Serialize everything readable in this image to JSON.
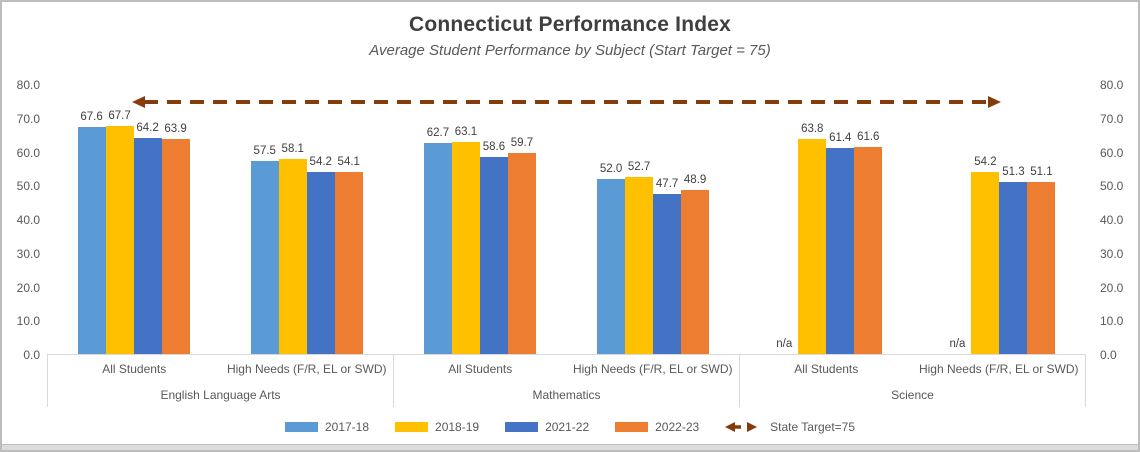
{
  "title": "Connecticut Performance Index",
  "subtitle": "Average Student Performance by Subject (Start Target = 75)",
  "colors": {
    "accent_target": "#843C0C",
    "axis_line": "#D9D9D9",
    "text_gray": "#595959"
  },
  "chart_data": {
    "type": "bar",
    "title": "Connecticut Performance Index",
    "subtitle": "Average Student Performance by Subject (Start Target = 75)",
    "ylim": [
      0,
      80
    ],
    "y_tick_labels": [
      "80.0",
      "70.0",
      "60.0",
      "50.0",
      "40.0",
      "30.0",
      "20.0",
      "10.0",
      "0.0"
    ],
    "dual_y_axis": true,
    "grid": false,
    "legend_position": "bottom",
    "series": [
      {
        "name": "2017-18",
        "color": "#5B9BD5"
      },
      {
        "name": "2018-19",
        "color": "#FFC000"
      },
      {
        "name": "2021-22",
        "color": "#4472C4"
      },
      {
        "name": "2022-23",
        "color": "#ED7D31"
      }
    ],
    "groups": [
      {
        "subject": "English Language Arts",
        "categories": [
          {
            "label": "All Students",
            "values": [
              67.6,
              67.7,
              64.2,
              63.9
            ]
          },
          {
            "label": "High Needs (F/R, EL or SWD)",
            "values": [
              57.5,
              58.1,
              54.2,
              54.1
            ]
          }
        ]
      },
      {
        "subject": "Mathematics",
        "categories": [
          {
            "label": "All Students",
            "values": [
              62.7,
              63.1,
              58.6,
              59.7
            ]
          },
          {
            "label": "High Needs (F/R, EL or SWD)",
            "values": [
              52.0,
              52.7,
              47.7,
              48.9
            ]
          }
        ]
      },
      {
        "subject": "Science",
        "categories": [
          {
            "label": "All Students",
            "values": [
              null,
              63.8,
              61.4,
              61.6
            ]
          },
          {
            "label": "High Needs (F/R, EL or SWD)",
            "values": [
              null,
              54.2,
              51.3,
              51.1
            ]
          }
        ]
      }
    ],
    "na_label": "n/a",
    "target_line": {
      "value": 75,
      "label": "State Target=75",
      "color": "#843C0C",
      "style": "dashed-double-arrow"
    }
  }
}
